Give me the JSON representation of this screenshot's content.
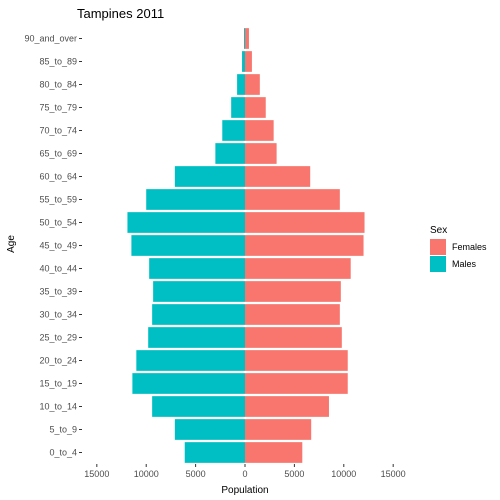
{
  "chart_data": {
    "type": "bar",
    "orientation": "horizontal",
    "title": "Tampines  2011",
    "xlabel": "Population",
    "ylabel": "Age",
    "categories": [
      "0_to_4",
      "5_to_9",
      "10_to_14",
      "15_to_19",
      "20_to_24",
      "25_to_29",
      "30_to_34",
      "35_to_39",
      "40_to_44",
      "45_to_49",
      "50_to_54",
      "55_to_59",
      "60_to_64",
      "65_to_69",
      "70_to_74",
      "75_to_79",
      "80_to_84",
      "85_to_89",
      "90_and_over"
    ],
    "x_ticks": [
      -15000,
      -10000,
      -5000,
      0,
      5000,
      10000,
      15000
    ],
    "x_tick_labels": [
      "15000",
      "10000",
      "5000",
      "0",
      "5000",
      "10000",
      "15000"
    ],
    "xlim": [
      -16500,
      16500
    ],
    "series": [
      {
        "name": "Females",
        "color": "#F8766D",
        "values": [
          5800,
          6700,
          8500,
          10400,
          10400,
          9800,
          9600,
          9700,
          10700,
          12000,
          12100,
          9600,
          6600,
          3200,
          2900,
          2100,
          1500,
          700,
          400
        ]
      },
      {
        "name": "Males",
        "color": "#00BFC4",
        "values": [
          6100,
          7100,
          9400,
          11400,
          11000,
          9800,
          9400,
          9300,
          9700,
          11500,
          11900,
          10000,
          7100,
          3000,
          2300,
          1400,
          800,
          300,
          100
        ]
      }
    ],
    "legend": {
      "title": "Sex",
      "position": "right",
      "entries": [
        "Females",
        "Males"
      ]
    },
    "grid": false
  }
}
